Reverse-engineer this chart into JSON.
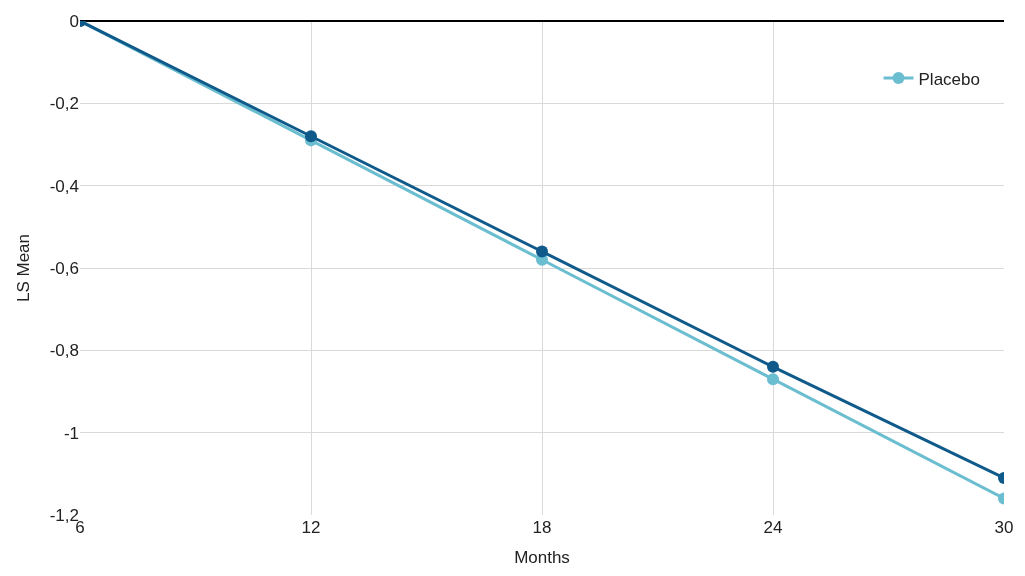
{
  "chart_data": {
    "type": "line",
    "xlabel": "Months",
    "ylabel": "LS Mean",
    "x": [
      6,
      12,
      18,
      24,
      30
    ],
    "series": [
      {
        "color": "#0f5a8a",
        "values": [
          0,
          -0.28,
          -0.56,
          -0.84,
          -1.11
        ]
      },
      {
        "name": "Placebo",
        "color": "#6bbdd0",
        "values": [
          0,
          -0.29,
          -0.58,
          -0.87,
          -1.16
        ]
      }
    ],
    "xlim": [
      6,
      30
    ],
    "xticks": [
      6,
      12,
      18,
      24,
      30
    ],
    "ylim": [
      -1.2,
      0
    ],
    "yticks": [
      {
        "value": 0,
        "label": "0"
      },
      {
        "value": -0.2,
        "label": "-0,2"
      },
      {
        "value": -0.4,
        "label": "-0,4"
      },
      {
        "value": -0.6,
        "label": "-0,6"
      },
      {
        "value": -0.8,
        "label": "-0,8"
      },
      {
        "value": -1,
        "label": "-1"
      },
      {
        "value": -1.2,
        "label": "-1,2"
      }
    ],
    "grid": true,
    "legend": "top right",
    "marker": "circle",
    "line_style": "solid"
  }
}
